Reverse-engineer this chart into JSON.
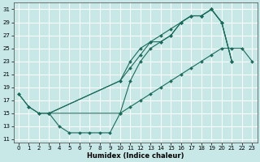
{
  "xlabel": "Humidex (Indice chaleur)",
  "bg_color": "#c8e8e8",
  "grid_color": "#ffffff",
  "line_color": "#1a6b5a",
  "xlim_min": -0.5,
  "xlim_max": 23.5,
  "ylim_min": 10.5,
  "ylim_max": 32,
  "xticks": [
    0,
    1,
    2,
    3,
    4,
    5,
    6,
    7,
    8,
    9,
    10,
    11,
    12,
    13,
    14,
    15,
    16,
    17,
    18,
    19,
    20,
    21,
    22,
    23
  ],
  "yticks": [
    11,
    13,
    15,
    17,
    19,
    21,
    23,
    25,
    27,
    29,
    31
  ],
  "line1_x": [
    0,
    1,
    2,
    3,
    4,
    5,
    6,
    7,
    8,
    9,
    10,
    11,
    12,
    13,
    14,
    15,
    16,
    17,
    18,
    19,
    20,
    21
  ],
  "line1_y": [
    18,
    16,
    15,
    15,
    13,
    12,
    12,
    12,
    12,
    12,
    15,
    20,
    23,
    25,
    26,
    27,
    29,
    30,
    30,
    31,
    29,
    23
  ],
  "line2_x": [
    0,
    1,
    2,
    3,
    10,
    11,
    12,
    13,
    14,
    15,
    16,
    17,
    18,
    19,
    20,
    21,
    22,
    23
  ],
  "line2_y": [
    18,
    16,
    15,
    15,
    15,
    16,
    17,
    18,
    19,
    20,
    21,
    22,
    23,
    24,
    25,
    25,
    25,
    23
  ],
  "line3_x": [
    3,
    10,
    11,
    12,
    13,
    14,
    15,
    16,
    17,
    18,
    19,
    20,
    21
  ],
  "line3_y": [
    15,
    20,
    22,
    24,
    26,
    26,
    27,
    29,
    30,
    30,
    31,
    29,
    23
  ],
  "line4_x": [
    3,
    10,
    11,
    12,
    13,
    14,
    15,
    16,
    17,
    18,
    19,
    20,
    21
  ],
  "line4_y": [
    15,
    20,
    23,
    25,
    26,
    27,
    28,
    29,
    30,
    30,
    31,
    29,
    23
  ],
  "xlabel_fontsize": 6,
  "tick_fontsize": 5
}
